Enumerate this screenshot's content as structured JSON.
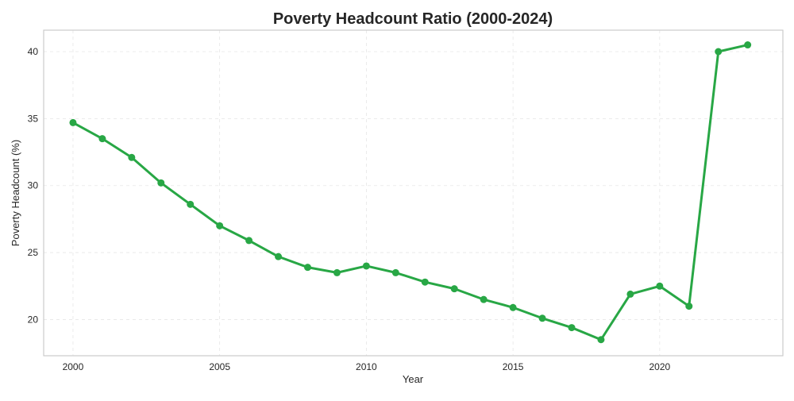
{
  "chart_data": {
    "type": "line",
    "title": "Poverty Headcount Ratio (2000-2024)",
    "xlabel": "Year",
    "ylabel": "Poverty Headcount (%)",
    "xlim": [
      1999,
      2024.2
    ],
    "ylim": [
      17.3,
      41.6
    ],
    "x_ticks": [
      2000,
      2005,
      2010,
      2015,
      2020
    ],
    "y_ticks": [
      20,
      25,
      30,
      35,
      40
    ],
    "grid": true,
    "legend": "none",
    "series": [
      {
        "color": "#28a745",
        "x": [
          2000,
          2001,
          2002,
          2003,
          2004,
          2005,
          2006,
          2007,
          2008,
          2009,
          2010,
          2011,
          2012,
          2013,
          2014,
          2015,
          2016,
          2017,
          2018,
          2019,
          2020,
          2021,
          2022,
          2023
        ],
        "y": [
          34.7,
          33.5,
          32.1,
          30.2,
          28.6,
          27.0,
          25.9,
          24.7,
          23.9,
          23.5,
          24.0,
          23.5,
          22.8,
          22.3,
          21.5,
          20.9,
          20.1,
          19.4,
          18.5,
          21.9,
          22.5,
          21.0,
          40.0,
          40.5
        ]
      }
    ]
  }
}
